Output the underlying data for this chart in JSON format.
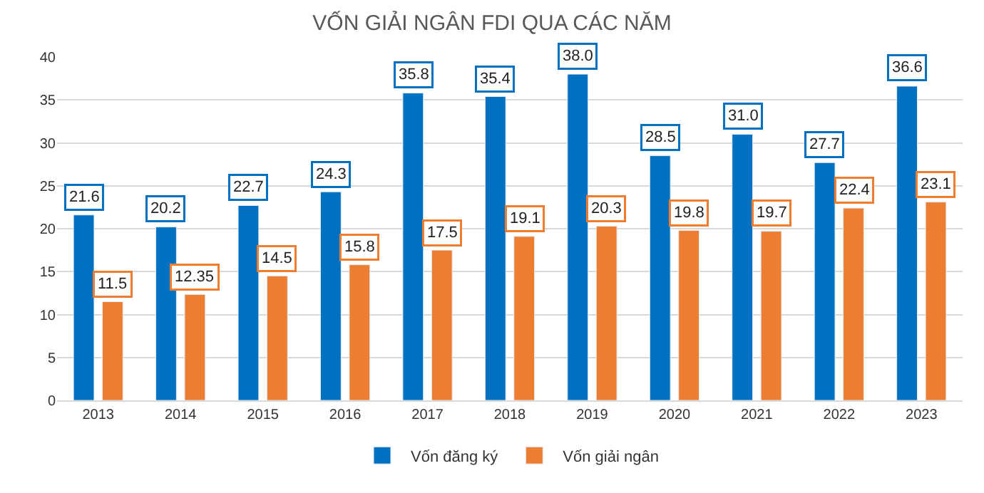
{
  "chart_data": {
    "type": "bar",
    "title": "VỐN GIẢI NGÂN FDI QUA CÁC NĂM",
    "categories": [
      "2013",
      "2014",
      "2015",
      "2016",
      "2017",
      "2018",
      "2019",
      "2020",
      "2021",
      "2022",
      "2023"
    ],
    "series": [
      {
        "name": "Vốn đăng ký",
        "color": "#0070c0",
        "values": [
          21.6,
          20.2,
          22.7,
          24.3,
          35.8,
          35.4,
          38.0,
          28.5,
          31.0,
          27.7,
          36.6
        ],
        "value_labels": [
          "21.6",
          "20.2",
          "22.7",
          "24.3",
          "35.8",
          "35.4",
          "38.0",
          "28.5",
          "31.0",
          "27.7",
          "36.6"
        ]
      },
      {
        "name": "Vốn giải ngân",
        "color": "#ed7d31",
        "values": [
          11.5,
          12.35,
          14.5,
          15.8,
          17.5,
          19.1,
          20.3,
          19.8,
          19.7,
          22.4,
          23.1
        ],
        "value_labels": [
          "11.5",
          "12.35",
          "14.5",
          "15.8",
          "17.5",
          "19.1",
          "20.3",
          "19.8",
          "19.7",
          "22.4",
          "23.1"
        ]
      }
    ],
    "ylim": [
      0,
      40
    ],
    "yticks": [
      0,
      5,
      10,
      15,
      20,
      25,
      30,
      35,
      40
    ],
    "grid": "y",
    "legend": "bottom"
  }
}
